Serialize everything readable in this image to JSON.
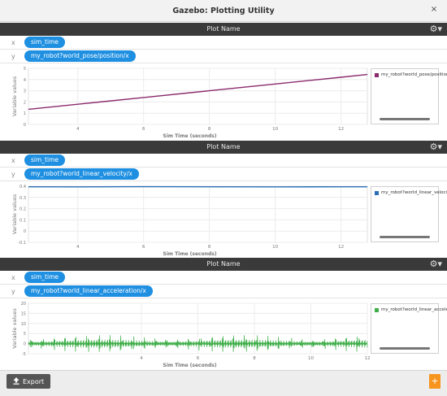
{
  "window": {
    "title": "Gazebo: Plotting Utility",
    "close_glyph": "×"
  },
  "icons": {
    "gear": "gear-icon",
    "export": "upload-icon",
    "add": "plus-icon",
    "close": "close-icon"
  },
  "colors": {
    "pill": "#1e8fe1",
    "header": "#3a3a3a",
    "accent": "#f7941d"
  },
  "plots": [
    {
      "header": "Plot Name",
      "x_label": "x",
      "x_var": "sim_time",
      "y_label": "y",
      "y_var": "my_robot?world_pose/position/x",
      "legend": "my_robot?world_pose/position/x"
    },
    {
      "header": "Plot Name",
      "x_label": "x",
      "x_var": "sim_time",
      "y_label": "y",
      "y_var": "my_robot?world_linear_velocity/x",
      "legend": "my_robot?world_linear_velocity/x"
    },
    {
      "header": "Plot Name",
      "x_label": "x",
      "x_var": "sim_time",
      "y_label": "y",
      "y_var": "my_robot?world_linear_acceleration/x",
      "legend": "my_robot?world_linear_acceleration/x"
    }
  ],
  "footer": {
    "export_label": "Export",
    "add_label": "+"
  },
  "chart_data": [
    {
      "type": "line",
      "xlabel": "Sim Time (seconds)",
      "ylabel": "Variable values",
      "xlim": [
        2.5,
        12.8
      ],
      "ylim": [
        0,
        5
      ],
      "xticks": [
        4,
        6,
        8,
        10,
        12
      ],
      "yticks": [
        0,
        1,
        2,
        3,
        4,
        5
      ],
      "grid": true,
      "legend_position": "right",
      "series": [
        {
          "name": "my_robot?world_pose/position/x",
          "color": "#8b2a6d",
          "x": [
            2.5,
            4,
            6,
            8,
            10,
            12,
            12.8
          ],
          "y": [
            1.35,
            1.8,
            2.4,
            3.0,
            3.6,
            4.2,
            4.45
          ]
        }
      ]
    },
    {
      "type": "line",
      "xlabel": "Sim Time (seconds)",
      "ylabel": "Variable values",
      "xlim": [
        2.5,
        12.8
      ],
      "ylim": [
        -0.1,
        0.4
      ],
      "xticks": [
        4,
        6,
        8,
        10,
        12
      ],
      "yticks": [
        -0.1,
        0,
        0.1,
        0.2,
        0.3,
        0.4
      ],
      "grid": true,
      "legend_position": "right",
      "series": [
        {
          "name": "my_robot?world_linear_velocity/x",
          "color": "#2a6fb5",
          "x": [
            2.5,
            4,
            6,
            8,
            10,
            12,
            12.8
          ],
          "y": [
            0.395,
            0.394,
            0.396,
            0.395,
            0.394,
            0.395,
            0.395
          ]
        }
      ]
    },
    {
      "type": "line",
      "xlabel": "Sim Time (seconds)",
      "ylabel": "Variable values",
      "xlim": [
        0,
        12
      ],
      "ylim": [
        -5,
        20
      ],
      "xticks": [
        4,
        6,
        8,
        10,
        12
      ],
      "yticks": [
        -5,
        0,
        5,
        10,
        15,
        20
      ],
      "grid": true,
      "legend_position": "right",
      "series": [
        {
          "name": "my_robot?world_linear_acceleration/x",
          "color": "#3fae49",
          "x": [
            0,
            12
          ],
          "y_mean": 0,
          "y_amplitude": 2
        }
      ]
    }
  ]
}
